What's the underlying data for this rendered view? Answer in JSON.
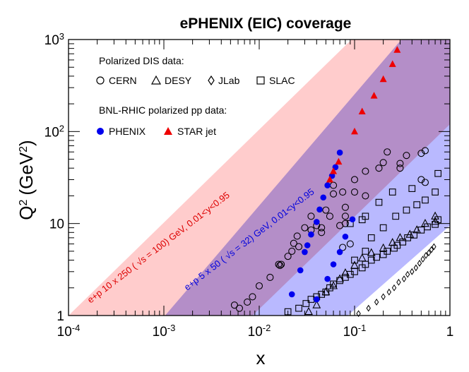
{
  "chart_data": {
    "type": "scatter",
    "title": "ePHENIX (EIC) coverage",
    "xlabel": "x",
    "ylabel": "Q",
    "ylabel_sup": "2",
    "ylabel_unit_open": "(GeV",
    "ylabel_unit_sup": "2",
    "ylabel_unit_close": ")",
    "xscale": "log",
    "yscale": "log",
    "xlim": [
      0.0001,
      1
    ],
    "ylim": [
      1,
      1000
    ],
    "x_ticks": [
      {
        "value": 0.0001,
        "base": "10",
        "exp": "-4"
      },
      {
        "value": 0.001,
        "base": "10",
        "exp": "-3"
      },
      {
        "value": 0.01,
        "base": "10",
        "exp": "-2"
      },
      {
        "value": 0.1,
        "base": "10",
        "exp": "-1"
      },
      {
        "value": 1,
        "base": "1",
        "exp": ""
      }
    ],
    "y_ticks": [
      {
        "value": 1,
        "base": "1",
        "exp": ""
      },
      {
        "value": 10,
        "base": "10",
        "exp": ""
      },
      {
        "value": 100,
        "base": "10",
        "exp": "2"
      },
      {
        "value": 1000,
        "base": "10",
        "exp": "3"
      }
    ],
    "bands": [
      {
        "name": "ep_10x250",
        "color": "#ffcccc",
        "label": "e+p 10 x 250 ( √s = 100) GeV, 0.01<y<0.95",
        "label_color": "#dd0000",
        "x_at_q1": [
          0.0001,
          0.0001053
        ],
        "xy_slope_points": [
          [
            0.0001,
            1
          ],
          [
            0.095,
            950
          ]
        ]
      },
      {
        "name": "ep_5x50",
        "color": "#b9b9ff",
        "label": "e+p 5 x 50 ( √s = 32) GeV, 0.01<y<0.95",
        "label_color": "#0000dd",
        "xy_slope_points": [
          [
            0.00103,
            1
          ],
          [
            1,
            970
          ]
        ]
      }
    ],
    "legend": {
      "group1_title": "Polarized DIS data:",
      "group1_items": [
        {
          "symbol": "circle-open",
          "label": "CERN"
        },
        {
          "symbol": "triangle-open",
          "label": "DESY"
        },
        {
          "symbol": "diamond-open",
          "label": "JLab"
        },
        {
          "symbol": "square-open",
          "label": "SLAC"
        }
      ],
      "group2_title": "BNL-RHIC polarized pp data:",
      "group2_items": [
        {
          "symbol": "circle-filled",
          "label": "PHENIX",
          "color": "#0000ee"
        },
        {
          "symbol": "triangle-filled",
          "label": "STAR jet",
          "color": "#ee0000"
        }
      ]
    },
    "series": [
      {
        "name": "CERN",
        "symbol": "circle-open",
        "color": "#000000",
        "points": [
          [
            0.0055,
            1.3
          ],
          [
            0.0062,
            1.2
          ],
          [
            0.0075,
            1.4
          ],
          [
            0.0085,
            1.6
          ],
          [
            0.01,
            2.1
          ],
          [
            0.013,
            2.6
          ],
          [
            0.016,
            3.6
          ],
          [
            0.0165,
            3.5
          ],
          [
            0.017,
            3.6
          ],
          [
            0.02,
            4.4
          ],
          [
            0.022,
            5.0
          ],
          [
            0.025,
            7.3
          ],
          [
            0.023,
            6.1
          ],
          [
            0.026,
            5.6
          ],
          [
            0.03,
            9.0
          ],
          [
            0.035,
            8.5
          ],
          [
            0.035,
            12
          ],
          [
            0.04,
            9.5
          ],
          [
            0.045,
            8.0
          ],
          [
            0.045,
            9.0
          ],
          [
            0.05,
            14
          ],
          [
            0.055,
            12
          ],
          [
            0.06,
            21
          ],
          [
            0.06,
            26
          ],
          [
            0.08,
            10
          ],
          [
            0.08,
            15
          ],
          [
            0.075,
            22
          ],
          [
            0.1,
            22
          ],
          [
            0.1,
            30
          ],
          [
            0.13,
            20
          ],
          [
            0.13,
            37
          ],
          [
            0.18,
            40
          ],
          [
            0.2,
            46
          ],
          [
            0.22,
            60
          ],
          [
            0.3,
            40
          ],
          [
            0.3,
            45
          ],
          [
            0.35,
            55
          ],
          [
            0.5,
            58
          ],
          [
            0.55,
            62
          ],
          [
            0.5,
            30
          ],
          [
            0.55,
            28
          ],
          [
            0.08,
            12
          ],
          [
            0.07,
            9.5
          ],
          [
            0.075,
            5.5
          ],
          [
            0.09,
            6.0
          ]
        ]
      },
      {
        "name": "DESY",
        "symbol": "triangle-open",
        "color": "#000000",
        "points": [
          [
            0.033,
            1.1
          ],
          [
            0.04,
            1.3
          ],
          [
            0.05,
            1.8
          ],
          [
            0.06,
            2.1
          ],
          [
            0.07,
            2.5
          ],
          [
            0.08,
            2.9
          ],
          [
            0.1,
            3.5
          ],
          [
            0.12,
            4.2
          ],
          [
            0.15,
            4.8
          ],
          [
            0.2,
            5.4
          ],
          [
            0.25,
            6.2
          ],
          [
            0.3,
            7.0
          ],
          [
            0.38,
            7.6
          ],
          [
            0.45,
            8.5
          ],
          [
            0.55,
            10
          ],
          [
            0.7,
            12
          ],
          [
            0.7,
            10.5
          ]
        ]
      },
      {
        "name": "JLab",
        "symbol": "diamond-open",
        "color": "#000000",
        "points": [
          [
            0.11,
            1.05
          ],
          [
            0.14,
            1.2
          ],
          [
            0.17,
            1.4
          ],
          [
            0.2,
            1.6
          ],
          [
            0.23,
            1.8
          ],
          [
            0.26,
            2.0
          ],
          [
            0.29,
            2.3
          ],
          [
            0.33,
            2.5
          ],
          [
            0.36,
            2.8
          ],
          [
            0.4,
            3.0
          ],
          [
            0.44,
            3.3
          ],
          [
            0.48,
            3.7
          ],
          [
            0.52,
            4.1
          ],
          [
            0.56,
            4.5
          ],
          [
            0.6,
            4.8
          ],
          [
            0.64,
            5.2
          ],
          [
            0.68,
            5.6
          ]
        ]
      },
      {
        "name": "SLAC",
        "symbol": "square-open",
        "color": "#000000",
        "points": [
          [
            0.02,
            1.1
          ],
          [
            0.026,
            1.2
          ],
          [
            0.031,
            1.35
          ],
          [
            0.035,
            1.5
          ],
          [
            0.04,
            1.6
          ],
          [
            0.045,
            1.7
          ],
          [
            0.05,
            1.8
          ],
          [
            0.055,
            2.0
          ],
          [
            0.06,
            2.2
          ],
          [
            0.07,
            2.4
          ],
          [
            0.08,
            2.6
          ],
          [
            0.09,
            2.8
          ],
          [
            0.1,
            3.0
          ],
          [
            0.12,
            3.3
          ],
          [
            0.13,
            3.6
          ],
          [
            0.15,
            4.0
          ],
          [
            0.17,
            4.3
          ],
          [
            0.2,
            4.6
          ],
          [
            0.22,
            5.0
          ],
          [
            0.26,
            5.4
          ],
          [
            0.28,
            5.8
          ],
          [
            0.32,
            6.3
          ],
          [
            0.36,
            7.0
          ],
          [
            0.42,
            7.5
          ],
          [
            0.5,
            8.5
          ],
          [
            0.58,
            9.2
          ],
          [
            0.7,
            9.8
          ],
          [
            0.75,
            11
          ],
          [
            0.1,
            4.0
          ],
          [
            0.13,
            5.0
          ],
          [
            0.15,
            7.0
          ],
          [
            0.2,
            9.0
          ],
          [
            0.27,
            12
          ],
          [
            0.35,
            14
          ],
          [
            0.45,
            16
          ],
          [
            0.55,
            18
          ],
          [
            0.7,
            22
          ],
          [
            0.75,
            35
          ],
          [
            0.4,
            24
          ],
          [
            0.25,
            22
          ],
          [
            0.18,
            17
          ],
          [
            0.13,
            12
          ],
          [
            0.09,
            10
          ],
          [
            0.12,
            11
          ]
        ]
      },
      {
        "name": "PHENIX",
        "symbol": "circle-filled",
        "color": "#0000ee",
        "points": [
          [
            0.022,
            1.7
          ],
          [
            0.027,
            3.1
          ],
          [
            0.03,
            4.9
          ],
          [
            0.032,
            5.8
          ],
          [
            0.035,
            7.6
          ],
          [
            0.04,
            10.4
          ],
          [
            0.043,
            14.2
          ],
          [
            0.047,
            19.2
          ],
          [
            0.052,
            26
          ],
          [
            0.058,
            33
          ],
          [
            0.063,
            41
          ],
          [
            0.07,
            59
          ],
          [
            0.04,
            1.5
          ],
          [
            0.052,
            2.5
          ],
          [
            0.06,
            3.6
          ],
          [
            0.07,
            4.9
          ],
          [
            0.08,
            7.2
          ],
          [
            0.095,
            11.1
          ]
        ]
      },
      {
        "name": "STAR jet",
        "symbol": "triangle-filled",
        "color": "#ee0000",
        "points": [
          [
            0.055,
            30
          ],
          [
            0.06,
            37
          ],
          [
            0.068,
            47
          ],
          [
            0.1,
            100
          ],
          [
            0.12,
            165
          ],
          [
            0.16,
            245
          ],
          [
            0.2,
            370
          ],
          [
            0.25,
            540
          ],
          [
            0.28,
            770
          ]
        ]
      }
    ]
  }
}
